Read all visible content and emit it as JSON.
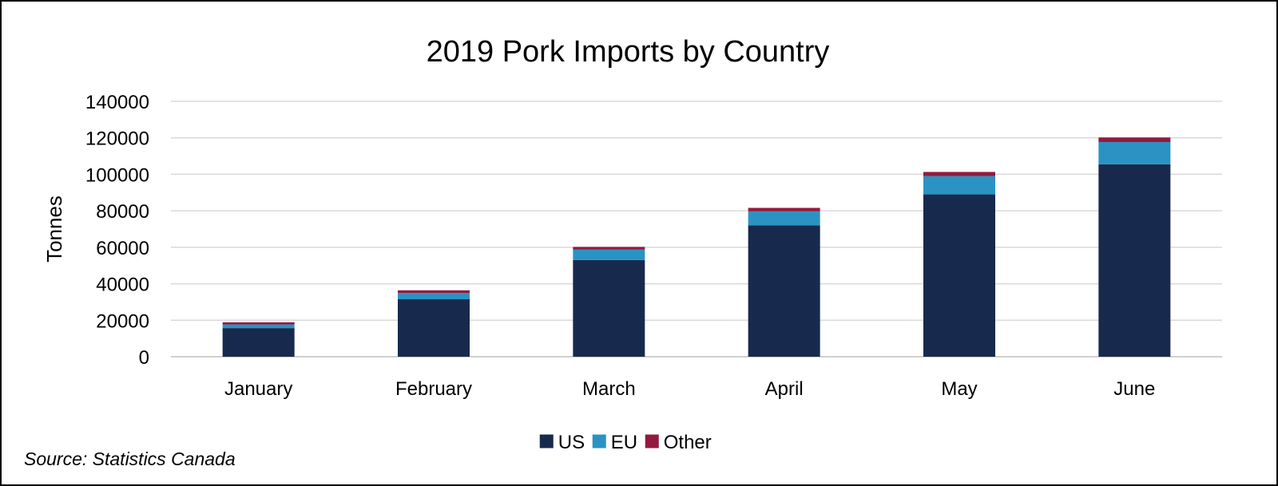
{
  "chart_data": {
    "type": "bar",
    "stacked": true,
    "title": "2019 Pork Imports by Country",
    "xlabel": "",
    "ylabel": "Tonnes",
    "ylim": [
      0,
      140000
    ],
    "yticks": [
      0,
      20000,
      40000,
      60000,
      80000,
      100000,
      120000,
      140000
    ],
    "ytick_labels": [
      "0",
      "20000",
      "40000",
      "60000",
      "80000",
      "100000",
      "120000",
      "140000"
    ],
    "categories": [
      "January",
      "February",
      "March",
      "April",
      "May",
      "June"
    ],
    "series": [
      {
        "name": "US",
        "color": "#172A4E",
        "values": [
          15700,
          31500,
          53000,
          72000,
          89000,
          105500
        ]
      },
      {
        "name": "EU",
        "color": "#2A93C4",
        "values": [
          2000,
          3500,
          5700,
          7700,
          10000,
          12200
        ]
      },
      {
        "name": "Other",
        "color": "#931A3E",
        "values": [
          1200,
          1400,
          1500,
          1900,
          2300,
          2500
        ]
      }
    ],
    "grid": true,
    "legend_position": "bottom"
  },
  "source": "Source: Statistics Canada"
}
